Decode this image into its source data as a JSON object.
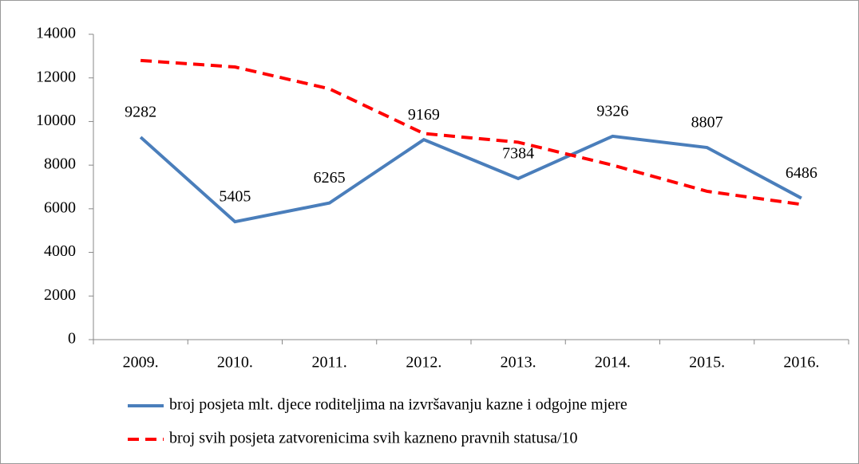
{
  "chart_data": {
    "type": "line",
    "categories": [
      "2009.",
      "2010.",
      "2011.",
      "2012.",
      "2013.",
      "2014.",
      "2015.",
      "2016."
    ],
    "series": [
      {
        "name": "broj posjeta mlt. djece roditeljima na izvršavanju kazne i odgojne mjere",
        "color": "#4a7ebb",
        "dash": false,
        "data_labels": true,
        "values": [
          9282,
          5405,
          6265,
          9169,
          7384,
          9326,
          8807,
          6486
        ]
      },
      {
        "name": "broj svih posjeta zatvorenicima svih kazneno pravnih statusa/10",
        "color": "#ff0000",
        "dash": true,
        "data_labels": false,
        "values": [
          12800,
          12500,
          11500,
          9450,
          9050,
          8000,
          6800,
          6200
        ]
      }
    ],
    "ylim": [
      0,
      14000
    ],
    "yticks": [
      0,
      2000,
      4000,
      6000,
      8000,
      10000,
      12000,
      14000
    ],
    "legend": "bottom"
  }
}
